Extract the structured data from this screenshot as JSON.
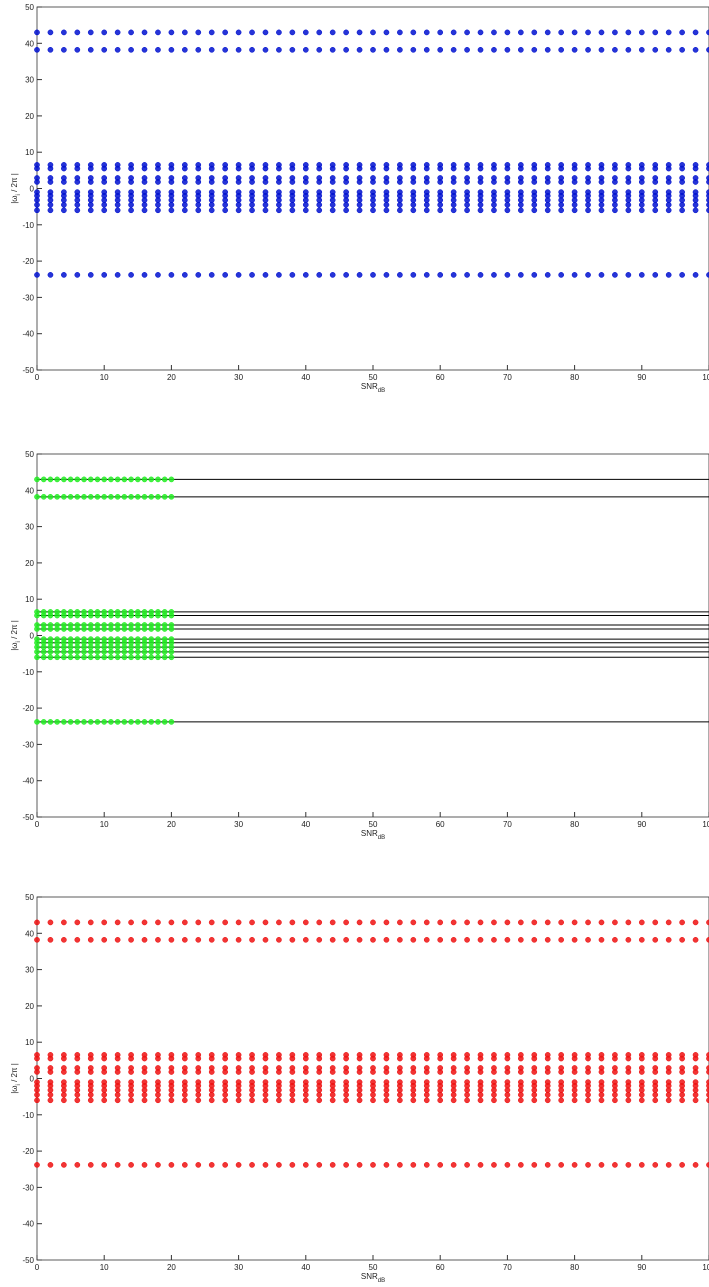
{
  "chart_data": [
    {
      "type": "scatter",
      "color": "#0010d0",
      "x": [
        0,
        2,
        4,
        6,
        8,
        10,
        12,
        14,
        16,
        18,
        20,
        22,
        24,
        26,
        28,
        30,
        32,
        34,
        36,
        38,
        40,
        42,
        44,
        46,
        48,
        50,
        52,
        54,
        56,
        58,
        60,
        62,
        64,
        66,
        68,
        70,
        72,
        74,
        76,
        78,
        80,
        82,
        84,
        86,
        88,
        90,
        92,
        94,
        96,
        98,
        100
      ],
      "levels": [
        43,
        38.2,
        6.5,
        5.5,
        2.9,
        1.8,
        -1,
        -2,
        -3.2,
        -4.5,
        -6,
        -23.8
      ],
      "xlim": [
        0,
        100
      ],
      "xticks": [
        0,
        10,
        20,
        30,
        40,
        50,
        60,
        70,
        80,
        90,
        100
      ],
      "ylim": [
        -50,
        50
      ],
      "yticks": [
        -50,
        -40,
        -30,
        -20,
        -10,
        0,
        10,
        20,
        30,
        40,
        50
      ],
      "xlabel": {
        "text": "SNR",
        "sub": "dB"
      },
      "ylabel": {
        "text": "|ω",
        "sub": "i",
        "rest": " / 2π |"
      }
    },
    {
      "type": "scatter",
      "color": "#22ee22",
      "line_color": "#000000",
      "reference_lines": true,
      "x": [
        0,
        1,
        2,
        3,
        4,
        5,
        6,
        7,
        8,
        9,
        10,
        11,
        12,
        13,
        14,
        15,
        16,
        17,
        18,
        19,
        20
      ],
      "levels": [
        43,
        38.2,
        6.5,
        5.5,
        2.9,
        1.8,
        -1,
        -2,
        -3.2,
        -4.5,
        -6,
        -23.8
      ],
      "xlim": [
        0,
        100
      ],
      "xticks": [
        0,
        10,
        20,
        30,
        40,
        50,
        60,
        70,
        80,
        90,
        100
      ],
      "ylim": [
        -50,
        50
      ],
      "yticks": [
        -50,
        -40,
        -30,
        -20,
        -10,
        0,
        10,
        20,
        30,
        40,
        50
      ],
      "xlabel": {
        "text": "SNR",
        "sub": "dB"
      },
      "ylabel": {
        "text": "|ω",
        "sub": "i",
        "rest": " / 2π |"
      }
    },
    {
      "type": "scatter",
      "color": "#ee1010",
      "x": [
        0,
        2,
        4,
        6,
        8,
        10,
        12,
        14,
        16,
        18,
        20,
        22,
        24,
        26,
        28,
        30,
        32,
        34,
        36,
        38,
        40,
        42,
        44,
        46,
        48,
        50,
        52,
        54,
        56,
        58,
        60,
        62,
        64,
        66,
        68,
        70,
        72,
        74,
        76,
        78,
        80,
        82,
        84,
        86,
        88,
        90,
        92,
        94,
        96,
        98,
        100
      ],
      "levels": [
        43,
        38.2,
        6.5,
        5.5,
        2.9,
        1.8,
        -1,
        -2,
        -3.2,
        -4.5,
        -6,
        -23.8
      ],
      "xlim": [
        0,
        100
      ],
      "xticks": [
        0,
        10,
        20,
        30,
        40,
        50,
        60,
        70,
        80,
        90,
        100
      ],
      "ylim": [
        -50,
        50
      ],
      "yticks": [
        -50,
        -40,
        -30,
        -20,
        -10,
        0,
        10,
        20,
        30,
        40,
        50
      ],
      "xlabel": {
        "text": "SNR",
        "sub": "dB"
      },
      "ylabel": {
        "text": "|ω",
        "sub": "i",
        "rest": " / 2π |"
      }
    }
  ]
}
